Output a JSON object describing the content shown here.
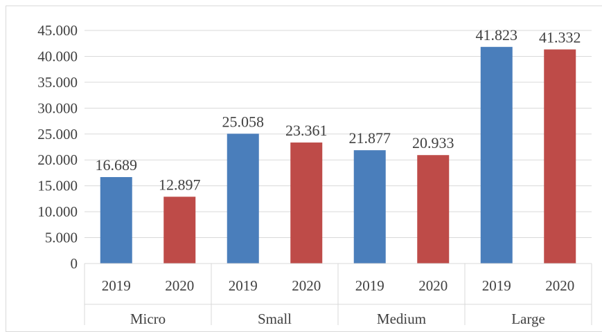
{
  "chart_data": {
    "type": "bar",
    "title": "",
    "xlabel": "",
    "ylabel": "",
    "ylim": [
      0,
      45000
    ],
    "ytick_values": [
      0,
      5000,
      10000,
      15000,
      20000,
      25000,
      30000,
      35000,
      40000,
      45000
    ],
    "ytick_labels": [
      "0",
      "5.000",
      "10.000",
      "15.000",
      "20.000",
      "25.000",
      "30.000",
      "35.000",
      "40.000",
      "45.000"
    ],
    "grid": true,
    "legend": "none",
    "groups": [
      {
        "label": "Micro",
        "bars": [
          {
            "label": "2019",
            "value": 16689,
            "value_label": "16.689",
            "color": "#4a7ebb"
          },
          {
            "label": "2020",
            "value": 12897,
            "value_label": "12.897",
            "color": "#be4b48"
          }
        ]
      },
      {
        "label": "Small",
        "bars": [
          {
            "label": "2019",
            "value": 25058,
            "value_label": "25.058",
            "color": "#4a7ebb"
          },
          {
            "label": "2020",
            "value": 23361,
            "value_label": "23.361",
            "color": "#be4b48"
          }
        ]
      },
      {
        "label": "Medium",
        "bars": [
          {
            "label": "2019",
            "value": 21877,
            "value_label": "21.877",
            "color": "#4a7ebb"
          },
          {
            "label": "2020",
            "value": 20933,
            "value_label": "20.933",
            "color": "#be4b48"
          }
        ]
      },
      {
        "label": "Large",
        "bars": [
          {
            "label": "2019",
            "value": 41823,
            "value_label": "41.823",
            "color": "#4a7ebb"
          },
          {
            "label": "2020",
            "value": 41332,
            "value_label": "41.332",
            "color": "#be4b48"
          }
        ]
      }
    ]
  }
}
